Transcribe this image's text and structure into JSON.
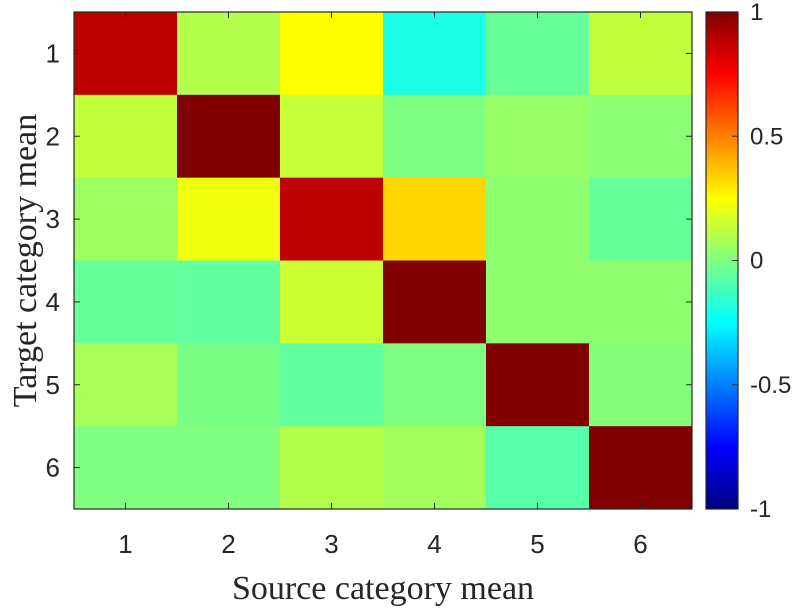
{
  "chart_data": {
    "type": "heatmap",
    "xlabel": "Source category mean",
    "ylabel": "Target category mean",
    "x_tick_labels": [
      "1",
      "2",
      "3",
      "4",
      "5",
      "6"
    ],
    "y_tick_labels": [
      "1",
      "2",
      "3",
      "4",
      "5",
      "6"
    ],
    "matrix": [
      [
        0.88,
        0.1,
        0.25,
        -0.2,
        -0.05,
        0.13
      ],
      [
        0.13,
        1.0,
        0.14,
        0.0,
        0.05,
        0.02
      ],
      [
        0.06,
        0.22,
        0.88,
        0.33,
        0.03,
        -0.05
      ],
      [
        -0.05,
        -0.06,
        0.15,
        1.0,
        0.03,
        0.03
      ],
      [
        0.08,
        -0.01,
        -0.06,
        0.0,
        1.0,
        0.01
      ],
      [
        0.0,
        0.0,
        0.1,
        0.07,
        -0.08,
        1.0
      ]
    ],
    "colormap": "jet",
    "clim": [
      -1,
      1
    ],
    "colorbar_ticks": [
      1,
      0.5,
      0,
      -0.5,
      -1
    ],
    "colorbar_tick_labels": [
      "1",
      "0.5",
      "0",
      "-0.5",
      "-1"
    ],
    "colorbar_placement": "right"
  }
}
